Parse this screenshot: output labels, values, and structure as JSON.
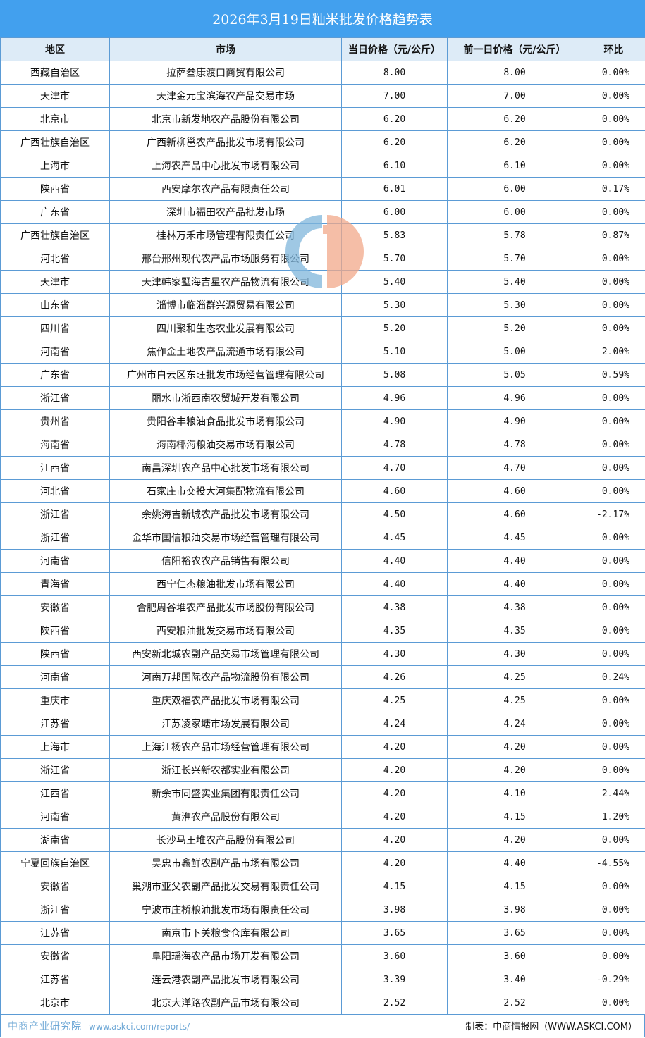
{
  "title": "2026年3月19日籼米批发价格趋势表",
  "columns": [
    "地区",
    "市场",
    "当日价格（元/公斤）",
    "前一日价格（元/公斤）",
    "环比"
  ],
  "rows": [
    [
      "西藏自治区",
      "拉萨叁康渡口商贸有限公司",
      "8.00",
      "8.00",
      "0.00%"
    ],
    [
      "天津市",
      "天津金元宝滨海农产品交易市场",
      "7.00",
      "7.00",
      "0.00%"
    ],
    [
      "北京市",
      "北京市新发地农产品股份有限公司",
      "6.20",
      "6.20",
      "0.00%"
    ],
    [
      "广西壮族自治区",
      "广西新柳邕农产品批发市场有限公司",
      "6.20",
      "6.20",
      "0.00%"
    ],
    [
      "上海市",
      "上海农产品中心批发市场有限公司",
      "6.10",
      "6.10",
      "0.00%"
    ],
    [
      "陕西省",
      "西安摩尔农产品有限责任公司",
      "6.01",
      "6.00",
      "0.17%"
    ],
    [
      "广东省",
      "深圳市福田农产品批发市场",
      "6.00",
      "6.00",
      "0.00%"
    ],
    [
      "广西壮族自治区",
      "桂林万禾市场管理有限责任公司",
      "5.83",
      "5.78",
      "0.87%"
    ],
    [
      "河北省",
      "邢台邢州现代农产品市场服务有限公司",
      "5.70",
      "5.70",
      "0.00%"
    ],
    [
      "天津市",
      "天津韩家墅海吉星农产品物流有限公司",
      "5.40",
      "5.40",
      "0.00%"
    ],
    [
      "山东省",
      "淄博市临淄群兴源贸易有限公司",
      "5.30",
      "5.30",
      "0.00%"
    ],
    [
      "四川省",
      "四川聚和生态农业发展有限公司",
      "5.20",
      "5.20",
      "0.00%"
    ],
    [
      "河南省",
      "焦作金土地农产品流通市场有限公司",
      "5.10",
      "5.00",
      "2.00%"
    ],
    [
      "广东省",
      "广州市白云区东旺批发市场经营管理有限公司",
      "5.08",
      "5.05",
      "0.59%"
    ],
    [
      "浙江省",
      "丽水市浙西南农贸城开发有限公司",
      "4.96",
      "4.96",
      "0.00%"
    ],
    [
      "贵州省",
      "贵阳谷丰粮油食品批发市场有限公司",
      "4.90",
      "4.90",
      "0.00%"
    ],
    [
      "海南省",
      "海南椰海粮油交易市场有限公司",
      "4.78",
      "4.78",
      "0.00%"
    ],
    [
      "江西省",
      "南昌深圳农产品中心批发市场有限公司",
      "4.70",
      "4.70",
      "0.00%"
    ],
    [
      "河北省",
      "石家庄市交投大河集配物流有限公司",
      "4.60",
      "4.60",
      "0.00%"
    ],
    [
      "浙江省",
      "余姚海吉新城农产品批发市场有限公司",
      "4.50",
      "4.60",
      "-2.17%"
    ],
    [
      "浙江省",
      "金华市国信粮油交易市场经营管理有限公司",
      "4.45",
      "4.45",
      "0.00%"
    ],
    [
      "河南省",
      "信阳裕农农产品销售有限公司",
      "4.40",
      "4.40",
      "0.00%"
    ],
    [
      "青海省",
      "西宁仁杰粮油批发市场有限公司",
      "4.40",
      "4.40",
      "0.00%"
    ],
    [
      "安徽省",
      "合肥周谷堆农产品批发市场股份有限公司",
      "4.38",
      "4.38",
      "0.00%"
    ],
    [
      "陕西省",
      "西安粮油批发交易市场有限公司",
      "4.35",
      "4.35",
      "0.00%"
    ],
    [
      "陕西省",
      "西安新北城农副产品交易市场管理有限公司",
      "4.30",
      "4.30",
      "0.00%"
    ],
    [
      "河南省",
      "河南万邦国际农产品物流股份有限公司",
      "4.26",
      "4.25",
      "0.24%"
    ],
    [
      "重庆市",
      "重庆双福农产品批发市场有限公司",
      "4.25",
      "4.25",
      "0.00%"
    ],
    [
      "江苏省",
      "江苏凌家塘市场发展有限公司",
      "4.24",
      "4.24",
      "0.00%"
    ],
    [
      "上海市",
      "上海江杨农产品市场经营管理有限公司",
      "4.20",
      "4.20",
      "0.00%"
    ],
    [
      "浙江省",
      "浙江长兴新农都实业有限公司",
      "4.20",
      "4.20",
      "0.00%"
    ],
    [
      "江西省",
      "新余市同盛实业集团有限责任公司",
      "4.20",
      "4.10",
      "2.44%"
    ],
    [
      "河南省",
      "黄淮农产品股份有限公司",
      "4.20",
      "4.15",
      "1.20%"
    ],
    [
      "湖南省",
      "长沙马王堆农产品股份有限公司",
      "4.20",
      "4.20",
      "0.00%"
    ],
    [
      "宁夏回族自治区",
      "吴忠市鑫鲜农副产品市场有限公司",
      "4.20",
      "4.40",
      "-4.55%"
    ],
    [
      "安徽省",
      "巢湖市亚父农副产品批发交易有限责任公司",
      "4.15",
      "4.15",
      "0.00%"
    ],
    [
      "浙江省",
      "宁波市庄桥粮油批发市场有限责任公司",
      "3.98",
      "3.98",
      "0.00%"
    ],
    [
      "江苏省",
      "南京市下关粮食仓库有限公司",
      "3.65",
      "3.65",
      "0.00%"
    ],
    [
      "安徽省",
      "阜阳瑶海农产品市场开发有限公司",
      "3.60",
      "3.60",
      "0.00%"
    ],
    [
      "江苏省",
      "连云港农副产品批发市场有限公司",
      "3.39",
      "3.40",
      "-0.29%"
    ],
    [
      "北京市",
      "北京大洋路农副产品市场有限公司",
      "2.52",
      "2.52",
      "0.00%"
    ]
  ],
  "footer": "制表：中商情报网（WWW.ASKCI.COM）",
  "watermark": {
    "name": "中商产业研究院",
    "url": "www.askci.com/reports/"
  },
  "colors": {
    "title_bar": "#42a0ee",
    "header_bg": "#ddebf7",
    "border": "#5b9bd5"
  }
}
